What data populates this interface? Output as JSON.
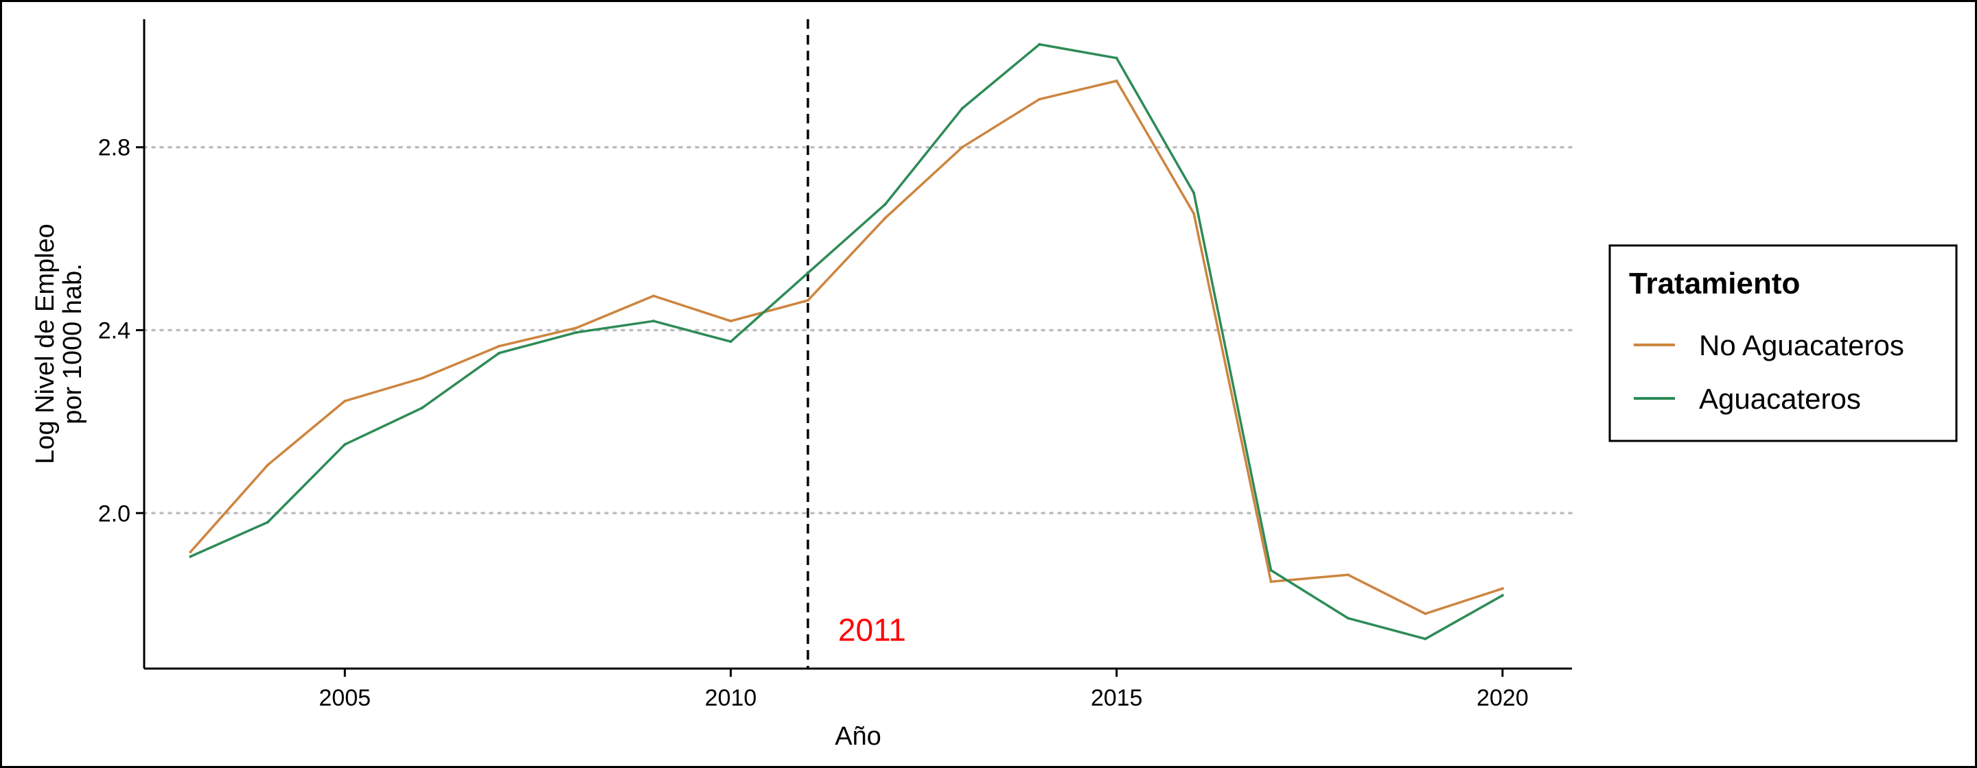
{
  "chart_data": {
    "type": "line",
    "xlabel": "Año",
    "ylabel_lines": [
      "Log Nivel de Empleo",
      "por 1000 hab."
    ],
    "xlim": [
      2002.4,
      2020.9
    ],
    "ylim": [
      1.66,
      3.08
    ],
    "x_ticks": [
      2005,
      2010,
      2015,
      2020
    ],
    "y_ticks": [
      2.0,
      2.4,
      2.8
    ],
    "y_tick_labels": [
      "2.0",
      "2.4",
      "2.8"
    ],
    "grid": "horizontal-dotted",
    "vline": {
      "x": 2011,
      "label": "2011",
      "label_y": 1.745,
      "color": "#ff0000"
    },
    "x": [
      2003,
      2004,
      2005,
      2006,
      2007,
      2008,
      2009,
      2010,
      2011,
      2012,
      2013,
      2014,
      2015,
      2016,
      2017,
      2018,
      2019,
      2020
    ],
    "series": [
      {
        "name": "No Aguacateros",
        "color": "#CD853F",
        "values": [
          1.915,
          2.105,
          2.245,
          2.295,
          2.365,
          2.405,
          2.475,
          2.42,
          2.465,
          2.645,
          2.8,
          2.905,
          2.945,
          2.655,
          1.85,
          1.865,
          1.78,
          1.835
        ]
      },
      {
        "name": "Aguacateros",
        "color": "#2E8B57",
        "values": [
          1.905,
          1.98,
          2.15,
          2.23,
          2.35,
          2.395,
          2.42,
          2.375,
          2.525,
          2.675,
          2.885,
          3.025,
          2.995,
          2.7,
          1.875,
          1.77,
          1.725,
          1.82
        ]
      }
    ],
    "legend": {
      "title": "Tratamiento",
      "placement": "right"
    }
  }
}
